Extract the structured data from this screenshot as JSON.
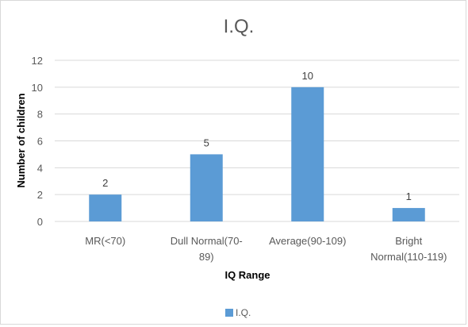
{
  "chart_data": {
    "type": "bar",
    "title": "I.Q.",
    "xlabel": "IQ Range",
    "ylabel": "Number  of children",
    "categories": [
      "MR(<70)",
      "Dull Normal(70-89)",
      "Average(90-109)",
      "Bright Normal(110-119)"
    ],
    "category_lines": [
      [
        "MR(<70)"
      ],
      [
        "Dull Normal(70-",
        "89)"
      ],
      [
        "Average(90-109)"
      ],
      [
        "Bright",
        "Normal(110-119)"
      ]
    ],
    "series": [
      {
        "name": "I.Q.",
        "values": [
          2,
          5,
          10,
          1
        ]
      }
    ],
    "ylim": [
      0,
      12
    ],
    "yticks": [
      0,
      2,
      4,
      6,
      8,
      10,
      12
    ],
    "grid": true,
    "data_labels": true,
    "legend_position": "bottom",
    "colors": {
      "bar": "#5b9bd5",
      "grid": "#d9d9d9",
      "text": "#595959"
    }
  }
}
